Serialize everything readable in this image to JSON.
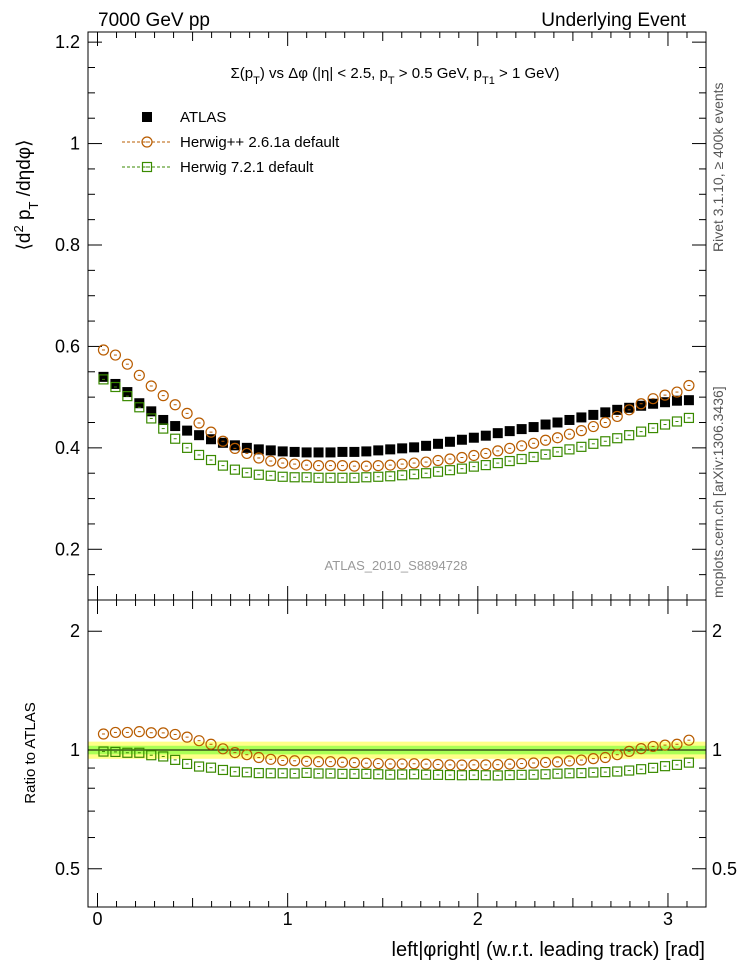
{
  "header": {
    "left": "7000 GeV pp",
    "right": "Underlying Event"
  },
  "side_labels": {
    "rivet": "Rivet 3.1.10, ≥ 400k events",
    "mcplots": "mcplots.cern.ch [arXiv:1306.3436]"
  },
  "watermark": "ATLAS_2010_S8894728",
  "chart_data": [
    {
      "type": "scatter",
      "title": "Σ(p_T) vs Δφ (|η| < 2.5, p_T > 0.5 GeV, p_T1 > 1 GeV)",
      "ylabel": "⟨d²p_T/dηdφ⟩",
      "xlabel": "left|φright| (w.r.t. leading track) [rad]",
      "xlim": [
        -0.05,
        3.2
      ],
      "ylim": [
        0.1,
        1.22
      ],
      "y_ticks": [
        0.2,
        0.4,
        0.6,
        0.8,
        1,
        1.2
      ],
      "y_tick_labels": [
        "0.2",
        "0.4",
        "0.6",
        "0.8",
        "1",
        "1.2"
      ],
      "legend_position": "top-left",
      "x": [
        0.0314,
        0.0942,
        0.157,
        0.2199,
        0.2827,
        0.3456,
        0.4084,
        0.4712,
        0.5341,
        0.5969,
        0.6597,
        0.7226,
        0.7854,
        0.8482,
        0.9111,
        0.9739,
        1.0367,
        1.0996,
        1.1624,
        1.2252,
        1.2881,
        1.3509,
        1.4137,
        1.4765,
        1.5394,
        1.6022,
        1.665,
        1.7279,
        1.7907,
        1.8535,
        1.9164,
        1.9792,
        2.042,
        2.1049,
        2.1677,
        2.2305,
        2.2934,
        2.3562,
        2.419,
        2.4819,
        2.5447,
        2.6075,
        2.6704,
        2.7332,
        2.796,
        2.8588,
        2.9217,
        2.9845,
        3.0473,
        3.1102
      ],
      "series": [
        {
          "name": "ATLAS",
          "marker": "filled-square",
          "color": "#000000",
          "values": [
            0.54,
            0.526,
            0.51,
            0.488,
            0.472,
            0.455,
            0.443,
            0.434,
            0.425,
            0.417,
            0.41,
            0.405,
            0.4,
            0.397,
            0.395,
            0.393,
            0.392,
            0.391,
            0.391,
            0.391,
            0.392,
            0.392,
            0.393,
            0.395,
            0.397,
            0.399,
            0.401,
            0.404,
            0.408,
            0.412,
            0.416,
            0.42,
            0.424,
            0.429,
            0.433,
            0.437,
            0.441,
            0.446,
            0.45,
            0.455,
            0.46,
            0.465,
            0.47,
            0.475,
            0.479,
            0.483,
            0.487,
            0.49,
            0.493,
            0.494
          ]
        },
        {
          "name": "Herwig++ 2.6.1a default",
          "marker": "open-circle",
          "color": "#b85c00",
          "values": [
            0.593,
            0.583,
            0.565,
            0.543,
            0.522,
            0.503,
            0.485,
            0.468,
            0.449,
            0.431,
            0.413,
            0.399,
            0.389,
            0.38,
            0.374,
            0.37,
            0.368,
            0.366,
            0.365,
            0.365,
            0.365,
            0.364,
            0.364,
            0.365,
            0.366,
            0.368,
            0.37,
            0.372,
            0.375,
            0.378,
            0.381,
            0.385,
            0.389,
            0.394,
            0.399,
            0.404,
            0.409,
            0.415,
            0.42,
            0.427,
            0.434,
            0.442,
            0.45,
            0.462,
            0.475,
            0.487,
            0.497,
            0.504,
            0.51,
            0.523
          ]
        },
        {
          "name": "Herwig 7.2.1 default",
          "marker": "open-square",
          "color": "#3a8a00",
          "values": [
            0.535,
            0.52,
            0.502,
            0.48,
            0.458,
            0.438,
            0.418,
            0.4,
            0.386,
            0.376,
            0.365,
            0.357,
            0.351,
            0.347,
            0.345,
            0.343,
            0.342,
            0.342,
            0.341,
            0.341,
            0.341,
            0.341,
            0.342,
            0.343,
            0.344,
            0.346,
            0.348,
            0.35,
            0.353,
            0.356,
            0.359,
            0.363,
            0.366,
            0.37,
            0.374,
            0.378,
            0.382,
            0.387,
            0.392,
            0.397,
            0.402,
            0.408,
            0.413,
            0.419,
            0.425,
            0.432,
            0.439,
            0.446,
            0.452,
            0.459
          ]
        }
      ]
    },
    {
      "type": "scatter",
      "title": "",
      "ylabel": "Ratio to ATLAS",
      "xlabel": "left|φright| (w.r.t. leading track) [rad]",
      "xlim": [
        -0.05,
        3.2
      ],
      "ylim": [
        0.4,
        2.4
      ],
      "y_ticks": [
        0.5,
        1,
        2
      ],
      "y_tick_labels": [
        "0.5",
        "1",
        "2"
      ],
      "x_ticks": [
        0,
        1,
        2,
        3
      ],
      "x_tick_labels": [
        "0",
        "1",
        "2",
        "3"
      ],
      "reference_band": {
        "center": 1.0,
        "inner_halfwidth": 0.025,
        "outer_halfwidth": 0.05,
        "inner_color": "#aaff55",
        "outer_color": "#ffff88"
      },
      "series": [
        {
          "name": "Herwig++ 2.6.1a default",
          "marker": "open-circle",
          "color": "#b85c00",
          "values": [
            1.098,
            1.108,
            1.108,
            1.113,
            1.106,
            1.105,
            1.095,
            1.078,
            1.056,
            1.034,
            1.007,
            0.985,
            0.973,
            0.957,
            0.947,
            0.941,
            0.939,
            0.936,
            0.934,
            0.934,
            0.931,
            0.929,
            0.926,
            0.924,
            0.922,
            0.922,
            0.923,
            0.921,
            0.919,
            0.917,
            0.916,
            0.917,
            0.917,
            0.918,
            0.921,
            0.924,
            0.927,
            0.93,
            0.933,
            0.938,
            0.943,
            0.951,
            0.957,
            0.973,
            0.992,
            1.008,
            1.021,
            1.029,
            1.034,
            1.059
          ]
        },
        {
          "name": "Herwig 7.2.1 default",
          "marker": "open-square",
          "color": "#3a8a00",
          "values": [
            0.991,
            0.989,
            0.984,
            0.984,
            0.97,
            0.963,
            0.944,
            0.922,
            0.908,
            0.902,
            0.89,
            0.881,
            0.878,
            0.874,
            0.873,
            0.873,
            0.872,
            0.875,
            0.872,
            0.872,
            0.87,
            0.87,
            0.87,
            0.868,
            0.866,
            0.867,
            0.868,
            0.866,
            0.865,
            0.864,
            0.863,
            0.864,
            0.863,
            0.862,
            0.864,
            0.865,
            0.866,
            0.868,
            0.871,
            0.873,
            0.874,
            0.877,
            0.879,
            0.882,
            0.887,
            0.894,
            0.901,
            0.91,
            0.917,
            0.929
          ]
        }
      ]
    }
  ]
}
